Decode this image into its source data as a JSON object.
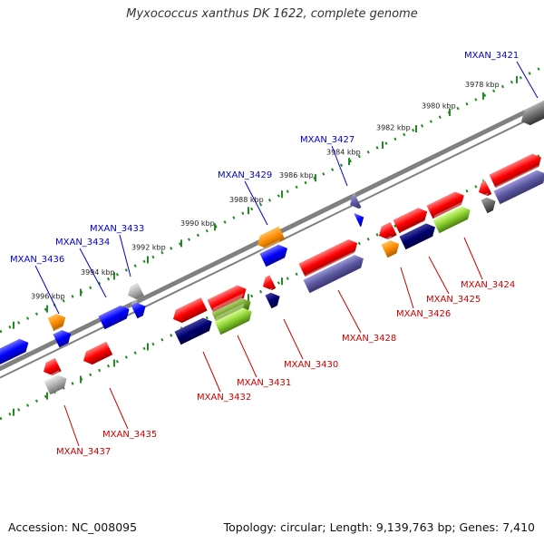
{
  "title": "Myxococcus xanthus DK 1622, complete genome",
  "footer": {
    "accession": "Accession: NC_008095",
    "summary": "Topology: circular; Length: 9,139,763 bp; Genes: 7,410"
  },
  "colors": {
    "backbone": "#808080",
    "ruler": "#228B22",
    "upper_label": "#0000cc",
    "lower_label": "#cc0000"
  },
  "kbp_ticks": [
    "3978 kbp",
    "3980 kbp",
    "3982 kbp",
    "3984 kbp",
    "3986 kbp",
    "3988 kbp",
    "3990 kbp",
    "3992 kbp",
    "3994 kbp",
    "3996 kbp"
  ],
  "upper_labels": [
    "MXAN_3421",
    "MXAN_3427",
    "MXAN_3429",
    "MXAN_3433",
    "MXAN_3434",
    "MXAN_3436"
  ],
  "lower_labels": [
    "MXAN_3424",
    "MXAN_3425",
    "MXAN_3426",
    "MXAN_3428",
    "MXAN_3430",
    "MXAN_3431",
    "MXAN_3432",
    "MXAN_3435",
    "MXAN_3437"
  ]
}
